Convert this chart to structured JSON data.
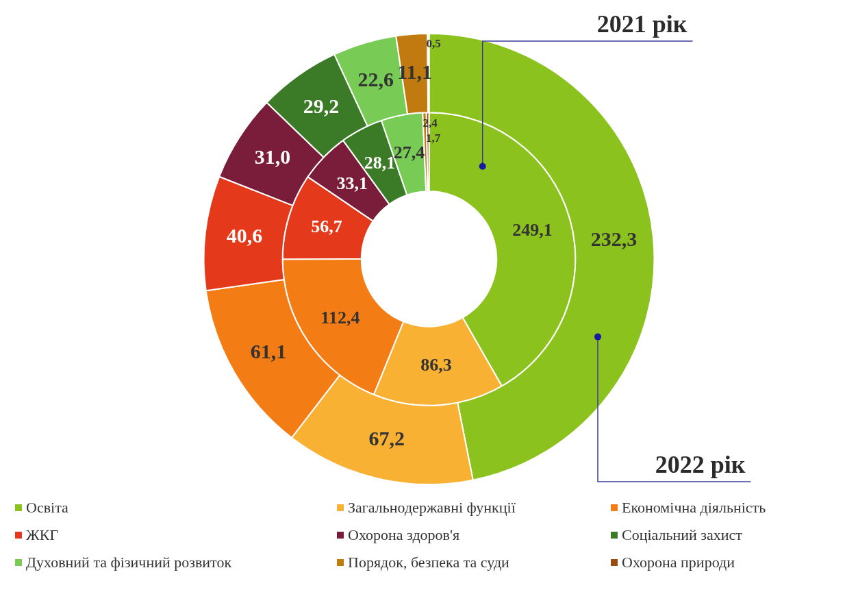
{
  "chart_data": {
    "type": "donut",
    "categories": [
      "Освіта",
      "Загальнодержавні функції",
      "Економічна діяльність",
      "ЖКГ",
      "Охорона здоров'я",
      "Соціальний захист",
      "Духовний та фізичний розвиток",
      "Порядок, безпека та суди",
      "Охорона природи"
    ],
    "colors": [
      "#8cc21e",
      "#f8b133",
      "#f47c14",
      "#e5391c",
      "#7a1d3a",
      "#3b7a26",
      "#78cc55",
      "#c07a10",
      "#9a4a12"
    ],
    "series": [
      {
        "name": "2022 рік",
        "values": [
          232.3,
          67.2,
          61.1,
          40.6,
          31.0,
          29.2,
          22.6,
          11.1,
          0.5
        ],
        "value_labels": [
          "232,3",
          "67,2",
          "61,1",
          "40,6",
          "31,0",
          "29,2",
          "22,6",
          "11,1",
          "0,5"
        ]
      },
      {
        "name": "2021 рік",
        "values": [
          249.1,
          86.3,
          112.4,
          56.7,
          33.1,
          28.1,
          27.4,
          2.4,
          1.7
        ],
        "value_labels": [
          "249,1",
          "86,3",
          "112,4",
          "56,7",
          "33,1",
          "28,1",
          "27,4",
          "2,4",
          "1,7"
        ]
      }
    ],
    "legend": "bottom"
  }
}
